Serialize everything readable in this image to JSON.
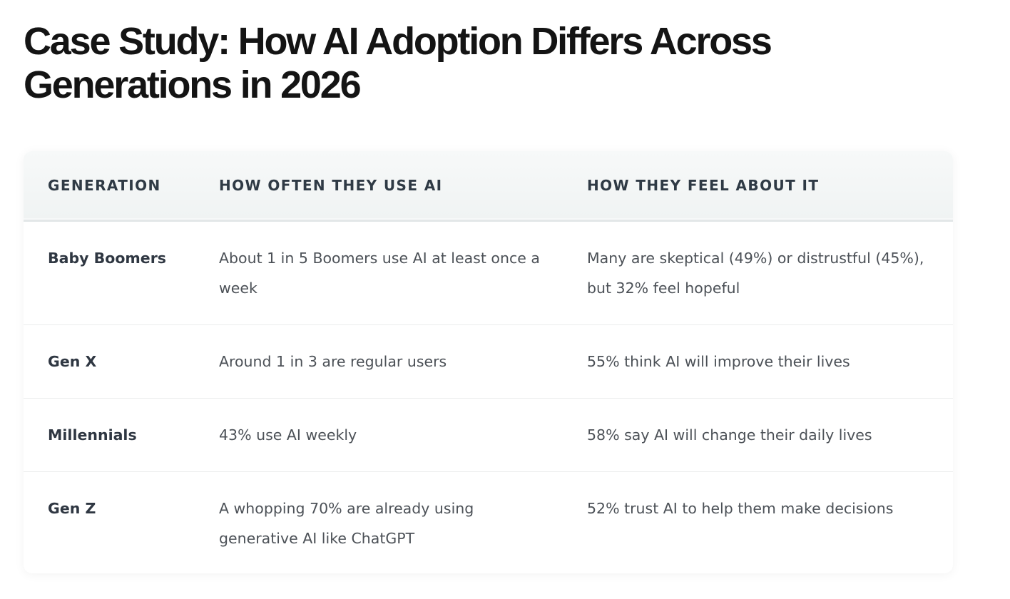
{
  "title": "Case Study: How AI Adoption Differs Across Generations in 2026",
  "table": {
    "headers": [
      "GENERATION",
      "HOW OFTEN THEY USE AI",
      "HOW THEY FEEL ABOUT IT"
    ],
    "rows": [
      {
        "generation": "Baby Boomers",
        "usage": "About 1 in 5 Boomers use AI at least once a week",
        "feeling": "Many are skeptical (49%) or distrustful (45%), but 32% feel hopeful"
      },
      {
        "generation": "Gen X",
        "usage": "Around 1 in 3 are regular users",
        "feeling": "55% think AI will improve their lives"
      },
      {
        "generation": "Millennials",
        "usage": "43% use AI weekly",
        "feeling": "58% say AI will change their daily lives"
      },
      {
        "generation": "Gen Z",
        "usage": "A whopping 70% are already using generative AI like ChatGPT",
        "feeling": "52% trust AI to help them make decisions"
      }
    ]
  }
}
